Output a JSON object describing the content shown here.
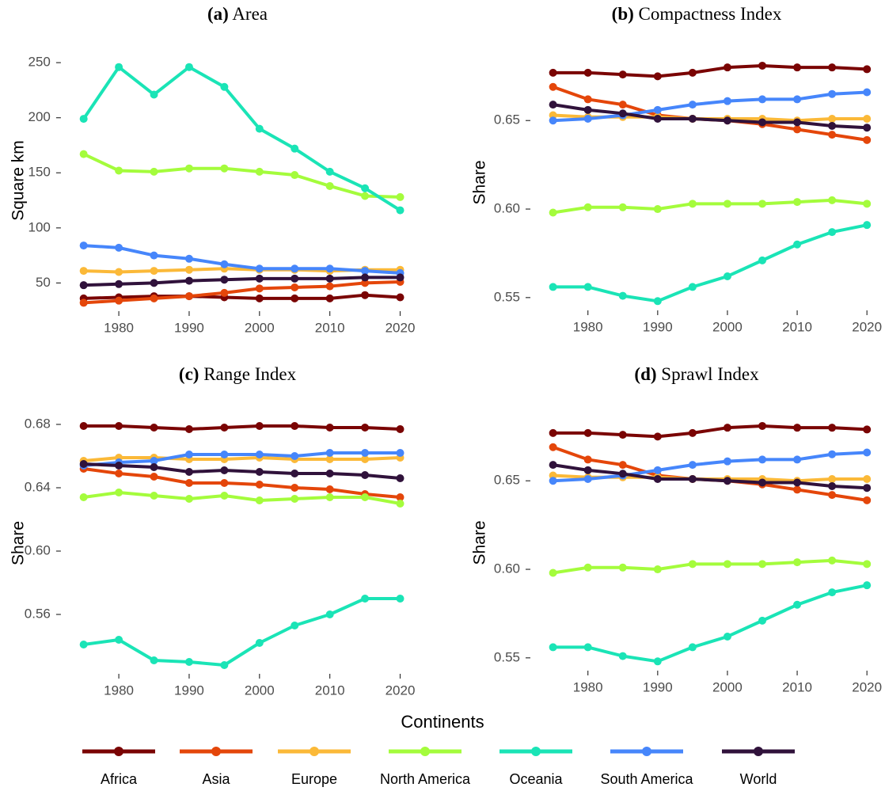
{
  "legend": {
    "title": "Continents"
  },
  "chart_data": [
    {
      "type": "line",
      "panel_label": "(a)",
      "title": "Area",
      "ylabel": "Square km",
      "x": [
        1975,
        1980,
        1985,
        1990,
        1995,
        2000,
        2005,
        2010,
        2015,
        2020
      ],
      "xlim": [
        1973,
        2021
      ],
      "xticks": [
        1980,
        1990,
        2000,
        2010,
        2020
      ],
      "ylim": [
        28,
        258
      ],
      "yticks": [
        50,
        100,
        150,
        200,
        250
      ],
      "series": [
        {
          "name": "Africa",
          "color": "#7a0403",
          "values": [
            36,
            37,
            38,
            38,
            37,
            36,
            36,
            36,
            39,
            37
          ]
        },
        {
          "name": "Asia",
          "color": "#e4460a",
          "values": [
            32,
            34,
            36,
            38,
            41,
            45,
            46,
            47,
            50,
            51
          ]
        },
        {
          "name": "Europe",
          "color": "#fbb938",
          "values": [
            61,
            60,
            61,
            62,
            63,
            62,
            62,
            61,
            62,
            62
          ]
        },
        {
          "name": "North America",
          "color": "#a4fc3c",
          "values": [
            167,
            152,
            151,
            154,
            154,
            151,
            148,
            138,
            129,
            128
          ]
        },
        {
          "name": "Oceania",
          "color": "#1ae4b6",
          "values": [
            199,
            246,
            221,
            246,
            228,
            190,
            172,
            151,
            136,
            116
          ]
        },
        {
          "name": "South America",
          "color": "#4686fb",
          "values": [
            84,
            82,
            75,
            72,
            67,
            63,
            63,
            63,
            61,
            59
          ]
        },
        {
          "name": "World",
          "color": "#30123b",
          "values": [
            48,
            49,
            50,
            52,
            53,
            54,
            54,
            54,
            55,
            55
          ]
        }
      ]
    },
    {
      "type": "line",
      "panel_label": "(b)",
      "title": "Compactness Index",
      "ylabel": "Share",
      "x": [
        1975,
        1980,
        1985,
        1990,
        1995,
        2000,
        2005,
        2010,
        2015,
        2020
      ],
      "xlim": [
        1973,
        2021
      ],
      "xticks": [
        1980,
        1990,
        2000,
        2010,
        2020
      ],
      "ylim": [
        0.545,
        0.685
      ],
      "yticks": [
        0.55,
        {
          "value": 0.6,
          "label": "0.60"
        },
        0.65
      ],
      "series": [
        {
          "name": "Africa",
          "color": "#7a0403",
          "values": [
            0.677,
            0.677,
            0.676,
            0.675,
            0.677,
            0.68,
            0.681,
            0.68,
            0.68,
            0.679
          ]
        },
        {
          "name": "Asia",
          "color": "#e4460a",
          "values": [
            0.669,
            0.662,
            0.659,
            0.653,
            0.651,
            0.65,
            0.648,
            0.645,
            0.642,
            0.639
          ]
        },
        {
          "name": "Europe",
          "color": "#fbb938",
          "values": [
            0.653,
            0.652,
            0.652,
            0.652,
            0.651,
            0.651,
            0.651,
            0.65,
            0.651,
            0.651
          ]
        },
        {
          "name": "North America",
          "color": "#a4fc3c",
          "values": [
            0.598,
            0.601,
            0.601,
            0.6,
            0.603,
            0.603,
            0.603,
            0.604,
            0.605,
            0.603
          ]
        },
        {
          "name": "Oceania",
          "color": "#1ae4b6",
          "values": [
            0.556,
            0.556,
            0.551,
            0.548,
            0.556,
            0.562,
            0.571,
            0.58,
            0.587,
            0.591
          ]
        },
        {
          "name": "South America",
          "color": "#4686fb",
          "values": [
            0.65,
            0.651,
            0.653,
            0.656,
            0.659,
            0.661,
            0.662,
            0.662,
            0.665,
            0.666
          ]
        },
        {
          "name": "World",
          "color": "#30123b",
          "values": [
            0.659,
            0.656,
            0.654,
            0.651,
            0.651,
            0.65,
            0.649,
            0.649,
            0.647,
            0.646
          ]
        }
      ]
    },
    {
      "type": "line",
      "panel_label": "(c)",
      "title": "Range Index",
      "ylabel": "Share",
      "x": [
        1975,
        1980,
        1985,
        1990,
        1995,
        2000,
        2005,
        2010,
        2015,
        2020
      ],
      "xlim": [
        1973,
        2021
      ],
      "xticks": [
        1980,
        1990,
        2000,
        2010,
        2020
      ],
      "ylim": [
        0.525,
        0.685
      ],
      "yticks": [
        0.56,
        {
          "value": 0.6,
          "label": "0.60"
        },
        0.64,
        0.68
      ],
      "series": [
        {
          "name": "Africa",
          "color": "#7a0403",
          "values": [
            0.679,
            0.679,
            0.678,
            0.677,
            0.678,
            0.679,
            0.679,
            0.678,
            0.678,
            0.677
          ]
        },
        {
          "name": "Asia",
          "color": "#e4460a",
          "values": [
            0.652,
            0.649,
            0.647,
            0.643,
            0.643,
            0.642,
            0.64,
            0.639,
            0.636,
            0.634
          ]
        },
        {
          "name": "Europe",
          "color": "#fbb938",
          "values": [
            0.657,
            0.659,
            0.659,
            0.658,
            0.658,
            0.659,
            0.658,
            0.658,
            0.658,
            0.659
          ]
        },
        {
          "name": "North America",
          "color": "#a4fc3c",
          "values": [
            0.634,
            0.637,
            0.635,
            0.633,
            0.635,
            0.632,
            0.633,
            0.634,
            0.634,
            0.63
          ]
        },
        {
          "name": "Oceania",
          "color": "#1ae4b6",
          "values": [
            0.541,
            0.544,
            0.531,
            0.53,
            0.528,
            0.542,
            0.553,
            0.56,
            0.57,
            0.57
          ]
        },
        {
          "name": "South America",
          "color": "#4686fb",
          "values": [
            0.654,
            0.656,
            0.657,
            0.661,
            0.661,
            0.661,
            0.66,
            0.662,
            0.662,
            0.662
          ]
        },
        {
          "name": "World",
          "color": "#30123b",
          "values": [
            0.655,
            0.654,
            0.653,
            0.65,
            0.651,
            0.65,
            0.649,
            0.649,
            0.648,
            0.646
          ]
        }
      ]
    },
    {
      "type": "line",
      "panel_label": "(d)",
      "title": "Sprawl Index",
      "ylabel": "Share",
      "x": [
        1975,
        1980,
        1985,
        1990,
        1995,
        2000,
        2005,
        2010,
        2015,
        2020
      ],
      "xlim": [
        1973,
        2021
      ],
      "xticks": [
        1980,
        1990,
        2000,
        2010,
        2020
      ],
      "ylim": [
        0.545,
        0.685
      ],
      "yticks": [
        0.55,
        {
          "value": 0.6,
          "label": "0.60"
        },
        0.65
      ],
      "series": [
        {
          "name": "Africa",
          "color": "#7a0403",
          "values": [
            0.677,
            0.677,
            0.676,
            0.675,
            0.677,
            0.68,
            0.681,
            0.68,
            0.68,
            0.679
          ]
        },
        {
          "name": "Asia",
          "color": "#e4460a",
          "values": [
            0.669,
            0.662,
            0.659,
            0.653,
            0.651,
            0.65,
            0.648,
            0.645,
            0.642,
            0.639
          ]
        },
        {
          "name": "Europe",
          "color": "#fbb938",
          "values": [
            0.653,
            0.652,
            0.652,
            0.652,
            0.651,
            0.651,
            0.651,
            0.65,
            0.651,
            0.651
          ]
        },
        {
          "name": "North America",
          "color": "#a4fc3c",
          "values": [
            0.598,
            0.601,
            0.601,
            0.6,
            0.603,
            0.603,
            0.603,
            0.604,
            0.605,
            0.603
          ]
        },
        {
          "name": "Oceania",
          "color": "#1ae4b6",
          "values": [
            0.556,
            0.556,
            0.551,
            0.548,
            0.556,
            0.562,
            0.571,
            0.58,
            0.587,
            0.591
          ]
        },
        {
          "name": "South America",
          "color": "#4686fb",
          "values": [
            0.65,
            0.651,
            0.653,
            0.656,
            0.659,
            0.661,
            0.662,
            0.662,
            0.665,
            0.666
          ]
        },
        {
          "name": "World",
          "color": "#30123b",
          "values": [
            0.659,
            0.656,
            0.654,
            0.651,
            0.651,
            0.65,
            0.649,
            0.649,
            0.647,
            0.646
          ]
        }
      ]
    }
  ]
}
